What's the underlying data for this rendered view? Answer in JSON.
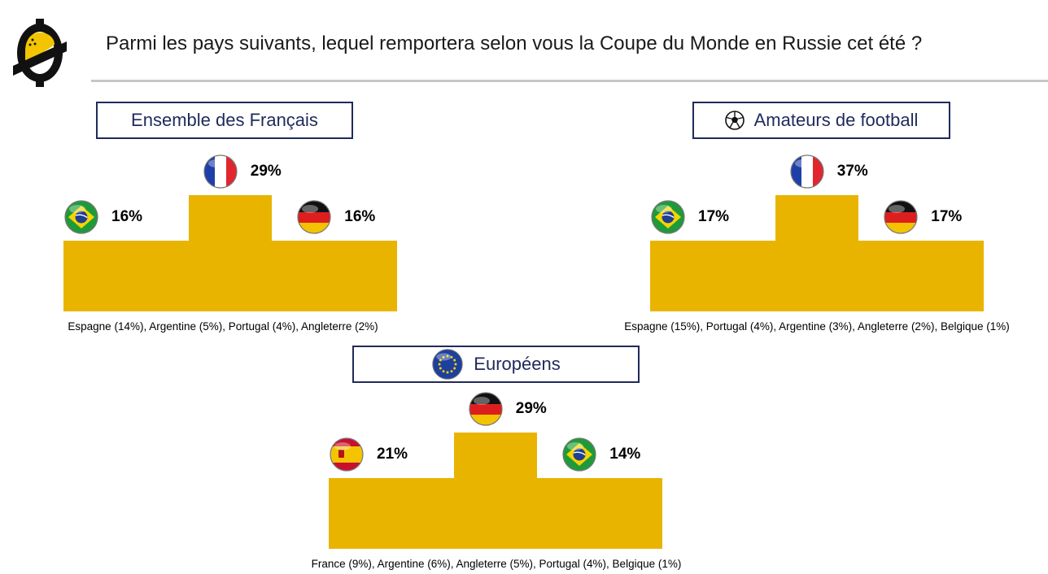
{
  "title": "Parmi les pays suivants, lequel remportera selon vous la Coupe du Monde en Russie cet été ?",
  "colors": {
    "podium": "#e9b400",
    "navy": "#1f2a5c",
    "rule": "#c6c6c6"
  },
  "chart_data": [
    {
      "type": "bar",
      "title": "Ensemble des Français",
      "categories": [
        "France",
        "Brésil",
        "Allemagne"
      ],
      "values": [
        29,
        16,
        16
      ],
      "value_labels": [
        "29%",
        "16%",
        "16%"
      ],
      "flags": [
        "france-flag-icon",
        "brazil-flag-icon",
        "germany-flag-icon"
      ],
      "ranks": [
        1,
        2,
        3
      ],
      "note": "Espagne (14%), Argentine (5%), Portugal (4%), Angleterre (2%)"
    },
    {
      "type": "bar",
      "title": "Amateurs de football",
      "title_icon": "soccer-ball-icon",
      "categories": [
        "France",
        "Brésil",
        "Allemagne"
      ],
      "values": [
        37,
        17,
        17
      ],
      "value_labels": [
        "37%",
        "17%",
        "17%"
      ],
      "flags": [
        "france-flag-icon",
        "brazil-flag-icon",
        "germany-flag-icon"
      ],
      "ranks": [
        1,
        2,
        3
      ],
      "note": "Espagne (15%), Portugal (4%), Argentine (3%), Angleterre (2%), Belgique (1%)"
    },
    {
      "type": "bar",
      "title": "Européens",
      "title_icon": "eu-flag-icon",
      "categories": [
        "Allemagne",
        "Espagne",
        "Brésil"
      ],
      "values": [
        29,
        21,
        14
      ],
      "value_labels": [
        "29%",
        "21%",
        "14%"
      ],
      "flags": [
        "germany-flag-icon",
        "spain-flag-icon",
        "brazil-flag-icon"
      ],
      "ranks": [
        1,
        2,
        3
      ],
      "note": "France  (9%), Argentine (6%), Angleterre (5%), Portugal (4%), Belgique (1%)"
    }
  ]
}
